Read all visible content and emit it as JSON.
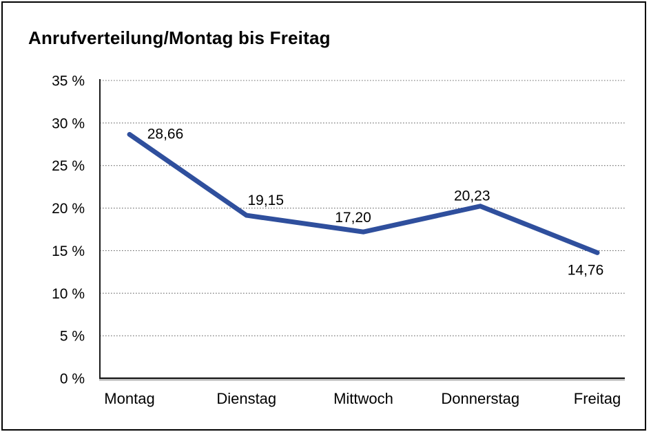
{
  "chart_data": {
    "type": "line",
    "title": "Anrufverteilung/Montag bis Freitag",
    "categories": [
      "Montag",
      "Dienstag",
      "Mittwoch",
      "Donnerstag",
      "Freitag"
    ],
    "values": [
      28.66,
      19.15,
      17.2,
      20.23,
      14.76
    ],
    "point_labels": [
      "28,66",
      "19,15",
      "17,20",
      "20,23",
      "14,76"
    ],
    "xlabel": "",
    "ylabel": "",
    "ylim": [
      0,
      35
    ],
    "ytick_step": 5,
    "ytick_labels": [
      "0 %",
      "5 %",
      "10 %",
      "15 %",
      "20 %",
      "25 %",
      "30 %",
      "35 %"
    ],
    "legend": "none",
    "grid": "horizontal-dotted",
    "colors": {
      "line": "#2F4F9D",
      "text": "#000000",
      "grid": "#6E6E6E",
      "axis": "#1A1A1A",
      "axis_shadow": "#AFAFAF"
    }
  }
}
